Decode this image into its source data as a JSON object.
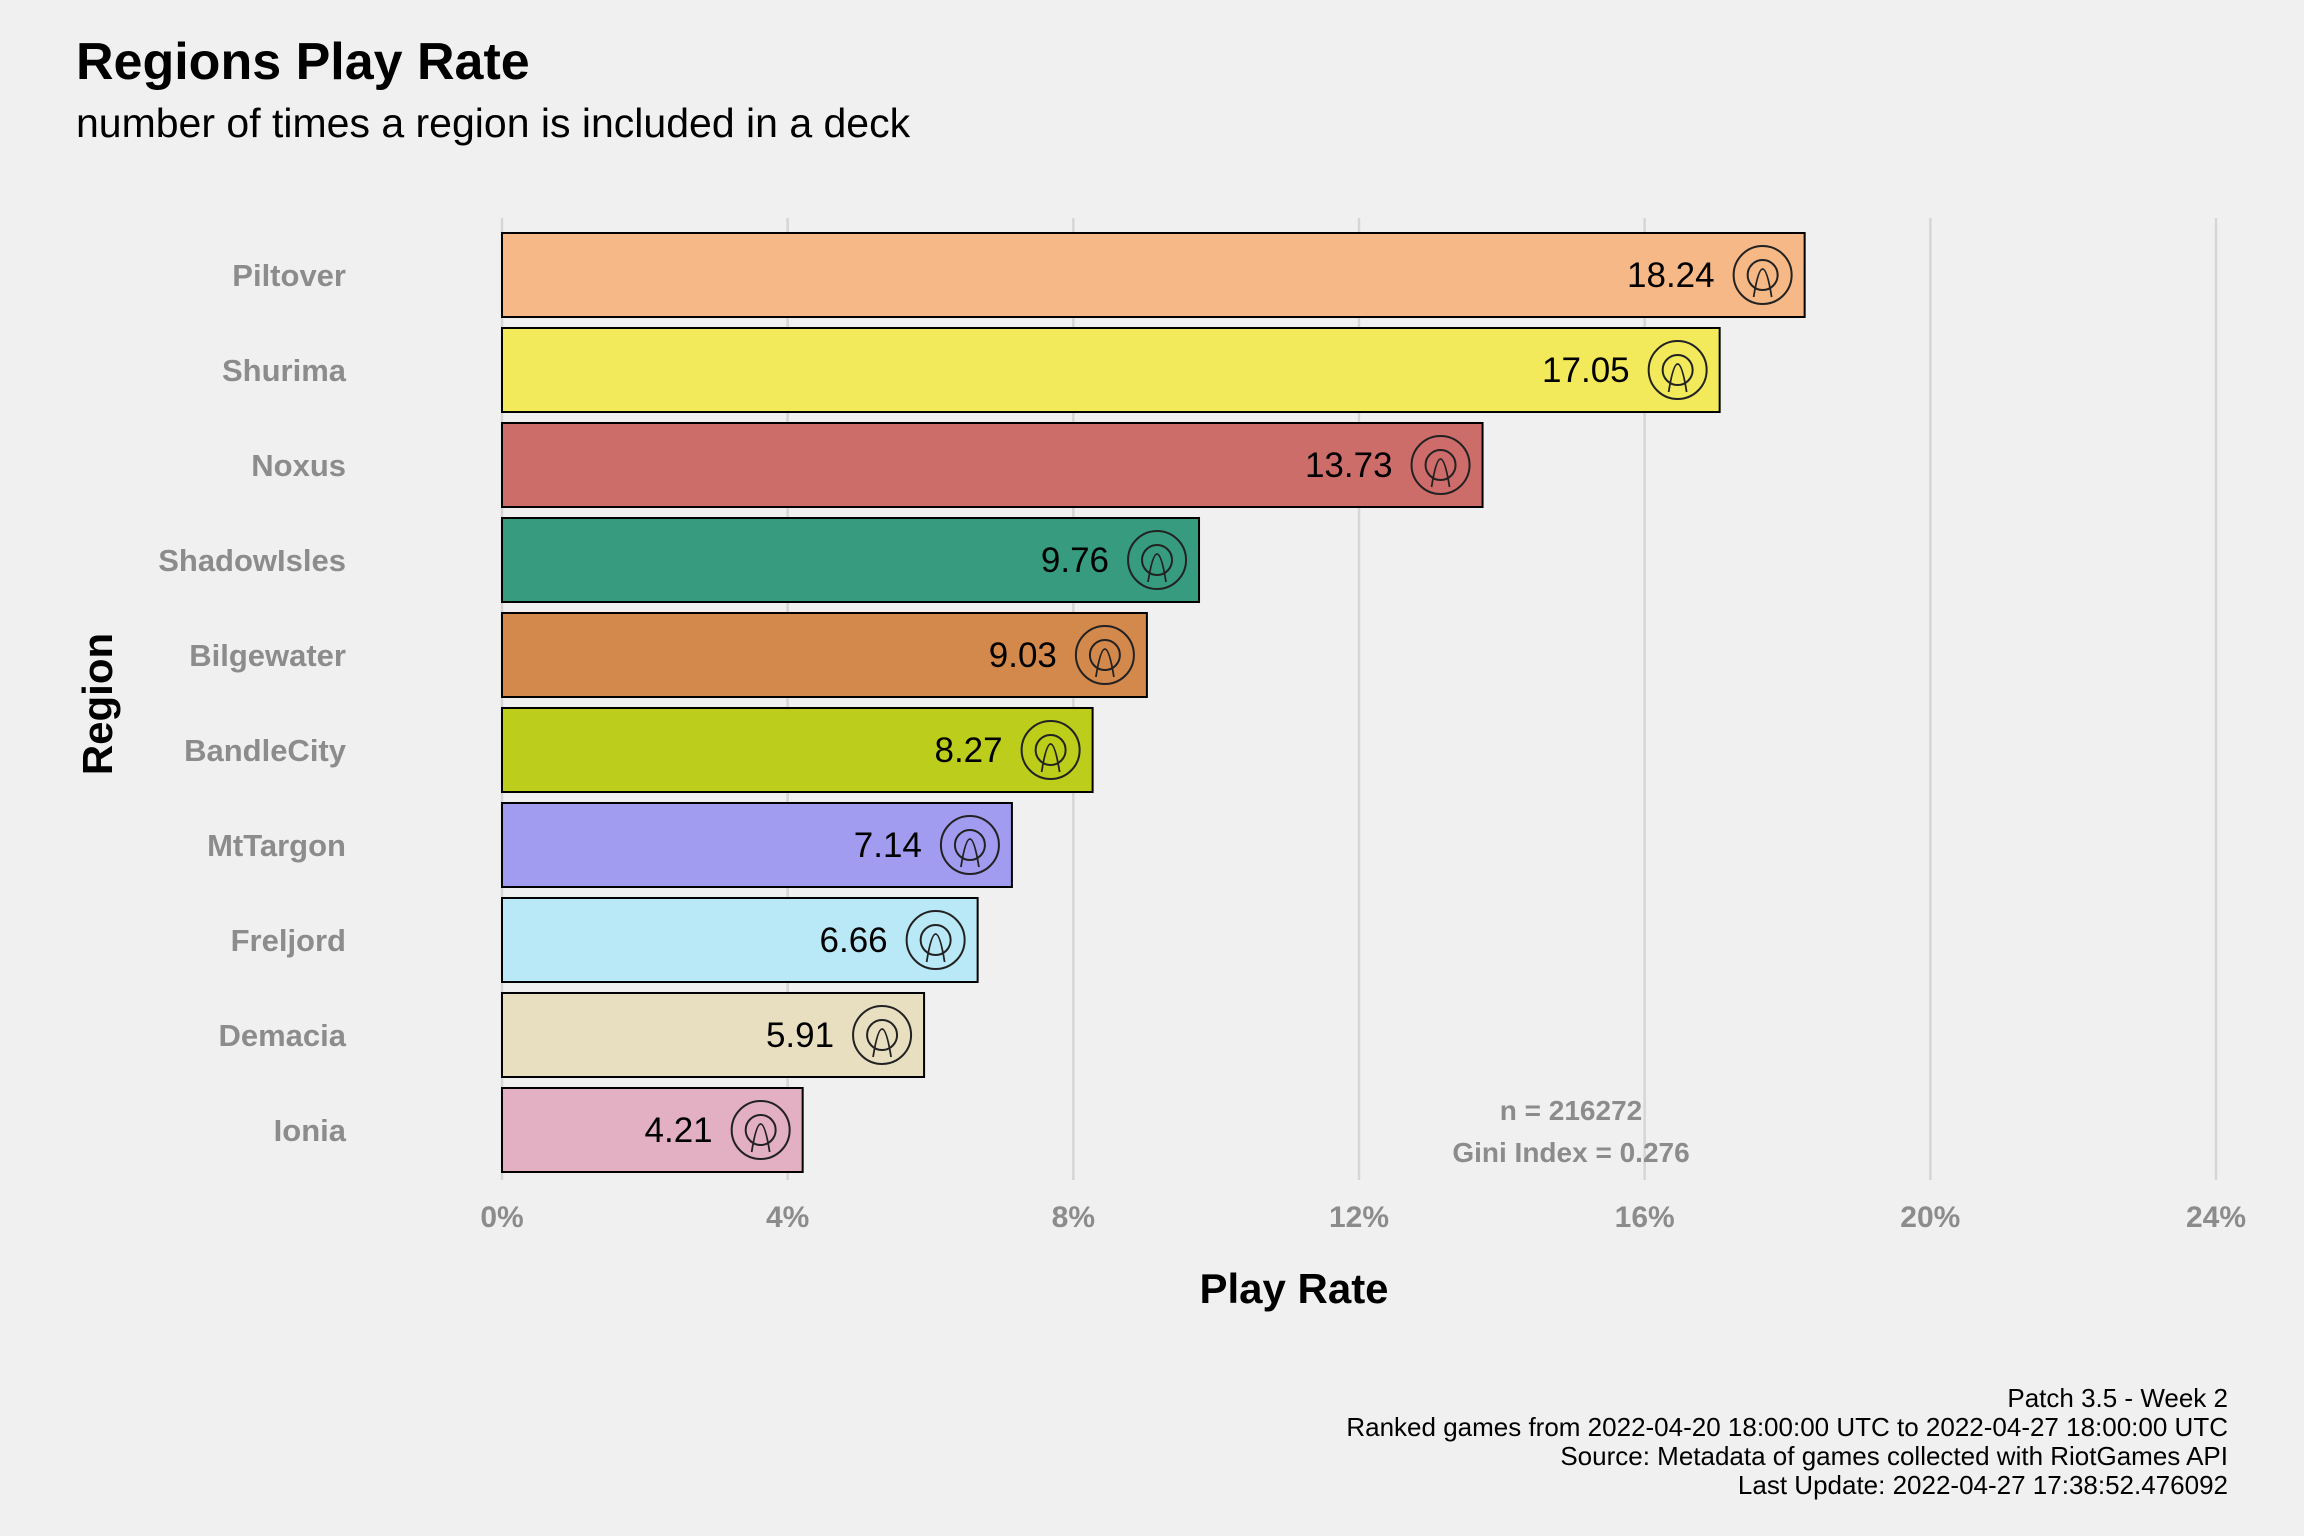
{
  "chart_data": {
    "type": "bar",
    "orientation": "horizontal",
    "title": "Regions Play Rate",
    "subtitle": "number of times a region is included in a deck",
    "xlabel": "Play Rate",
    "ylabel": "Region",
    "xlim": [
      0,
      24
    ],
    "x_ticks": [
      "0%",
      "4%",
      "8%",
      "12%",
      "16%",
      "20%",
      "24%"
    ],
    "grid": "vertical",
    "categories": [
      "Piltover",
      "Shurima",
      "Noxus",
      "ShadowIsles",
      "Bilgewater",
      "BandleCity",
      "MtTargon",
      "Freljord",
      "Demacia",
      "Ionia"
    ],
    "values": [
      18.24,
      17.05,
      13.73,
      9.76,
      9.03,
      8.27,
      7.14,
      6.66,
      5.91,
      4.21
    ],
    "value_labels": [
      "18.24",
      "17.05",
      "13.73",
      "9.76",
      "9.03",
      "8.27",
      "7.14",
      "6.66",
      "5.91",
      "4.21"
    ],
    "colors": [
      "#f6b886",
      "#f2e95b",
      "#cd6d6a",
      "#379c7f",
      "#d3884c",
      "#bccd1b",
      "#a19cef",
      "#b9e9f6",
      "#e8dfc1",
      "#e2b0c2"
    ],
    "icons": [
      "piltover-icon",
      "shurima-icon",
      "noxus-icon",
      "shadowisles-icon",
      "bilgewater-icon",
      "bandlecity-icon",
      "mttargon-icon",
      "freljord-icon",
      "demacia-icon",
      "ionia-icon"
    ],
    "annotations": [
      "n = 216272",
      "Gini Index = 0.276"
    ]
  },
  "caption": [
    "Patch 3.5 - Week 2",
    "Ranked games from 2022-04-20 18:00:00 UTC to 2022-04-27 18:00:00 UTC",
    "Source: Metadata of games collected with RiotGames API",
    "Last Update: 2022-04-27 17:38:52.476092"
  ]
}
